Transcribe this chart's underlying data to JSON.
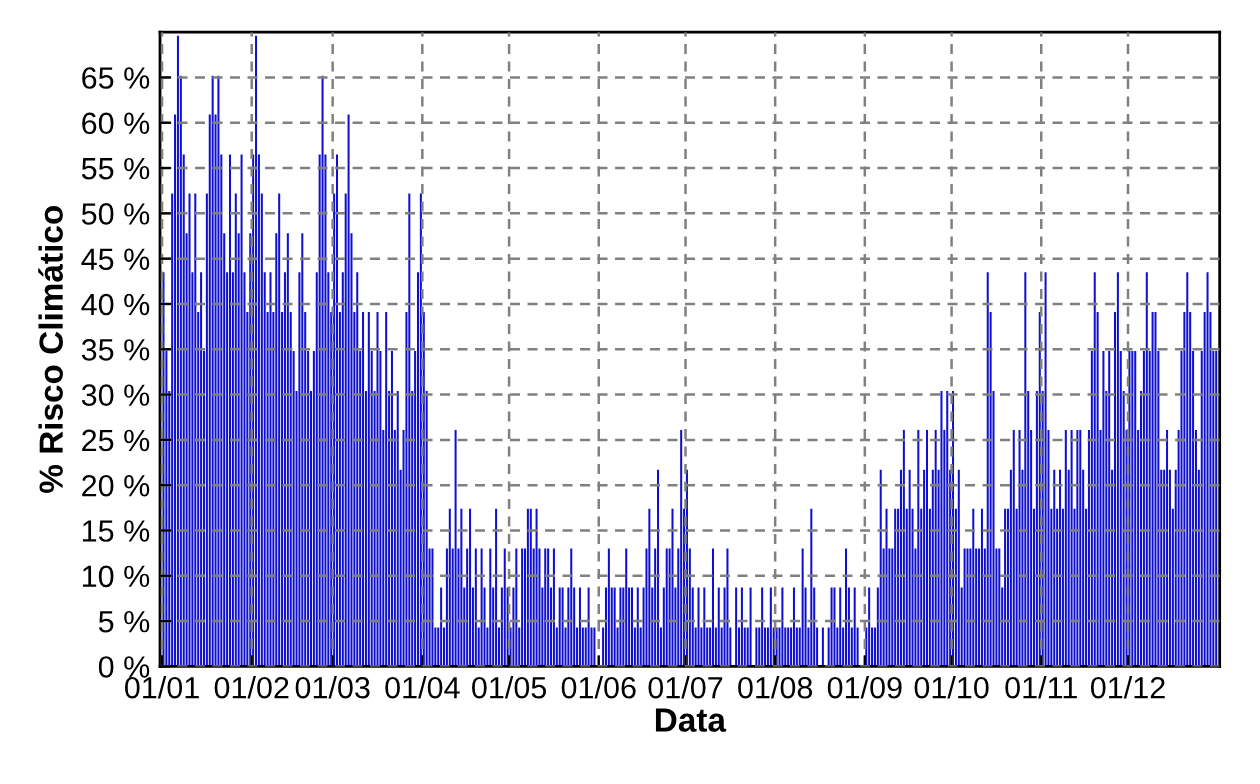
{
  "chart_data": {
    "type": "bar",
    "xlabel": "Data",
    "ylabel": "% Risco Climático",
    "color": "#0f0fd0",
    "grid": true,
    "ylim": [
      0,
      70
    ],
    "yticks": [
      {
        "value": 0,
        "label": "0 %"
      },
      {
        "value": 5,
        "label": "5 %"
      },
      {
        "value": 10,
        "label": "10 %"
      },
      {
        "value": 15,
        "label": "15 %"
      },
      {
        "value": 20,
        "label": "20 %"
      },
      {
        "value": 25,
        "label": "25 %"
      },
      {
        "value": 30,
        "label": "30 %"
      },
      {
        "value": 35,
        "label": "35 %"
      },
      {
        "value": 40,
        "label": "40 %"
      },
      {
        "value": 45,
        "label": "45 %"
      },
      {
        "value": 50,
        "label": "50 %"
      },
      {
        "value": 55,
        "label": "55 %"
      },
      {
        "value": 60,
        "label": "60 %"
      },
      {
        "value": 65,
        "label": "65 %"
      }
    ],
    "categories": [
      "01/01",
      null,
      null,
      null,
      null,
      null,
      null,
      null,
      null,
      null,
      null,
      null,
      null,
      null,
      null,
      null,
      null,
      null,
      null,
      null,
      null,
      null,
      null,
      null,
      null,
      null,
      null,
      null,
      null,
      null,
      null,
      "01/02",
      null,
      null,
      null,
      null,
      null,
      null,
      null,
      null,
      null,
      null,
      null,
      null,
      null,
      null,
      null,
      null,
      null,
      null,
      null,
      null,
      null,
      null,
      null,
      null,
      null,
      null,
      null,
      "01/03",
      null,
      null,
      null,
      null,
      null,
      null,
      null,
      null,
      null,
      null,
      null,
      null,
      null,
      null,
      null,
      null,
      null,
      null,
      null,
      null,
      null,
      null,
      null,
      null,
      null,
      null,
      null,
      null,
      null,
      null,
      "01/04",
      null,
      null,
      null,
      null,
      null,
      null,
      null,
      null,
      null,
      null,
      null,
      null,
      null,
      null,
      null,
      null,
      null,
      null,
      null,
      null,
      null,
      null,
      null,
      null,
      null,
      null,
      null,
      null,
      null,
      "01/05",
      null,
      null,
      null,
      null,
      null,
      null,
      null,
      null,
      null,
      null,
      null,
      null,
      null,
      null,
      null,
      null,
      null,
      null,
      null,
      null,
      null,
      null,
      null,
      null,
      null,
      null,
      null,
      null,
      null,
      null,
      "01/06",
      null,
      null,
      null,
      null,
      null,
      null,
      null,
      null,
      null,
      null,
      null,
      null,
      null,
      null,
      null,
      null,
      null,
      null,
      null,
      null,
      null,
      null,
      null,
      null,
      null,
      null,
      null,
      null,
      null,
      "01/07",
      null,
      null,
      null,
      null,
      null,
      null,
      null,
      null,
      null,
      null,
      null,
      null,
      null,
      null,
      null,
      null,
      null,
      null,
      null,
      null,
      null,
      null,
      null,
      null,
      null,
      null,
      null,
      null,
      null,
      null,
      "01/08",
      null,
      null,
      null,
      null,
      null,
      null,
      null,
      null,
      null,
      null,
      null,
      null,
      null,
      null,
      null,
      null,
      null,
      null,
      null,
      null,
      null,
      null,
      null,
      null,
      null,
      null,
      null,
      null,
      null,
      null,
      "01/09",
      null,
      null,
      null,
      null,
      null,
      null,
      null,
      null,
      null,
      null,
      null,
      null,
      null,
      null,
      null,
      null,
      null,
      null,
      null,
      null,
      null,
      null,
      null,
      null,
      null,
      null,
      null,
      null,
      null,
      "01/10",
      null,
      null,
      null,
      null,
      null,
      null,
      null,
      null,
      null,
      null,
      null,
      null,
      null,
      null,
      null,
      null,
      null,
      null,
      null,
      null,
      null,
      null,
      null,
      null,
      null,
      null,
      null,
      null,
      null,
      null,
      "01/11",
      null,
      null,
      null,
      null,
      null,
      null,
      null,
      null,
      null,
      null,
      null,
      null,
      null,
      null,
      null,
      null,
      null,
      null,
      null,
      null,
      null,
      null,
      null,
      null,
      null,
      null,
      null,
      null,
      null,
      "01/12",
      null,
      null,
      null,
      null,
      null,
      null,
      null,
      null,
      null,
      null,
      null,
      null,
      null,
      null,
      null,
      null,
      null,
      null,
      null,
      null,
      null,
      null,
      null,
      null,
      null,
      null,
      null,
      null,
      null,
      null
    ],
    "values": [
      43.5,
      34.8,
      30.4,
      52.2,
      60.9,
      69.6,
      65.2,
      56.5,
      47.8,
      52.2,
      43.5,
      52.2,
      39.1,
      43.5,
      34.8,
      52.2,
      60.9,
      65.2,
      60.9,
      65.2,
      56.5,
      47.8,
      43.5,
      56.5,
      43.5,
      52.2,
      47.8,
      56.5,
      43.5,
      39.1,
      47.8,
      56.5,
      69.6,
      56.5,
      52.2,
      43.5,
      39.1,
      43.5,
      39.1,
      47.8,
      52.2,
      39.1,
      43.5,
      47.8,
      39.1,
      34.8,
      30.4,
      43.5,
      47.8,
      39.1,
      34.8,
      30.4,
      34.8,
      43.5,
      56.5,
      65.2,
      56.5,
      43.5,
      39.1,
      52.2,
      56.5,
      39.1,
      43.5,
      52.2,
      60.9,
      47.8,
      39.1,
      43.5,
      34.8,
      39.1,
      30.4,
      39.1,
      34.8,
      30.4,
      39.1,
      34.8,
      26.1,
      39.1,
      30.4,
      34.8,
      26.1,
      30.4,
      21.7,
      26.1,
      39.1,
      52.2,
      30.4,
      34.8,
      43.5,
      52.2,
      39.1,
      30.4,
      13,
      13,
      4.3,
      4.3,
      8.7,
      4.3,
      13,
      17.4,
      13,
      26.1,
      13,
      17.4,
      8.7,
      13,
      17.4,
      8.7,
      13,
      4.3,
      13,
      8.7,
      4.3,
      13,
      8.7,
      17.4,
      4.3,
      8.7,
      13,
      8.7,
      4.3,
      8.7,
      13,
      4.3,
      13,
      13,
      17.4,
      17.4,
      13,
      17.4,
      13,
      8.7,
      13,
      13,
      8.7,
      13,
      4.3,
      8.7,
      8.7,
      4.3,
      8.7,
      13,
      8.7,
      4.3,
      8.7,
      4.3,
      4.3,
      8.7,
      4.3,
      4.3,
      0,
      0,
      4.3,
      8.7,
      13,
      8.7,
      8.7,
      4.3,
      8.7,
      8.7,
      13,
      8.7,
      8.7,
      4.3,
      8.7,
      4.3,
      8.7,
      13,
      17.4,
      8.7,
      13,
      21.7,
      4.3,
      8.7,
      13,
      13,
      17.4,
      8.7,
      13,
      26.1,
      17.4,
      21.7,
      13,
      8.7,
      4.3,
      8.7,
      4.3,
      8.7,
      4.3,
      4.3,
      13,
      4.3,
      8.7,
      4.3,
      8.7,
      13,
      4.3,
      0,
      8.7,
      4.3,
      8.7,
      4.3,
      4.3,
      8.7,
      0,
      4.3,
      4.3,
      8.7,
      4.3,
      4.3,
      8.7,
      4.3,
      4.3,
      4.3,
      8.7,
      4.3,
      4.3,
      4.3,
      8.7,
      4.3,
      4.3,
      13,
      8.7,
      4.3,
      17.4,
      8.7,
      4.3,
      0,
      4.3,
      0,
      4.3,
      8.7,
      8.7,
      4.3,
      8.7,
      4.3,
      13,
      8.7,
      4.3,
      8.7,
      4.3,
      0,
      0,
      4.3,
      8.7,
      4.3,
      4.3,
      8.7,
      21.7,
      13,
      17.4,
      13,
      13,
      17.4,
      17.4,
      21.7,
      26.1,
      17.4,
      21.7,
      17.4,
      13,
      26.1,
      17.4,
      21.7,
      26.1,
      17.4,
      21.7,
      26.1,
      21.7,
      30.4,
      26.1,
      30.4,
      21.7,
      30.4,
      17.4,
      21.7,
      8.7,
      13,
      13,
      13,
      17.4,
      13,
      13,
      17.4,
      13,
      43.5,
      39.1,
      30.4,
      13,
      13,
      8.7,
      17.4,
      17.4,
      21.7,
      26.1,
      17.4,
      26.1,
      21.7,
      43.5,
      30.4,
      26.1,
      17.4,
      30.4,
      39.1,
      30.4,
      43.5,
      26.1,
      17.4,
      21.7,
      17.4,
      21.7,
      17.4,
      26.1,
      21.7,
      26.1,
      17.4,
      26.1,
      26.1,
      21.7,
      17.4,
      26.1,
      34.8,
      43.5,
      39.1,
      26.1,
      34.8,
      30.4,
      34.8,
      21.7,
      39.1,
      43.5,
      34.8,
      30.4,
      26.1,
      34.8,
      34.8,
      34.8,
      26.1,
      30.4,
      34.8,
      43.5,
      34.8,
      39.1,
      39.1,
      34.8,
      21.7,
      21.7,
      26.1,
      21.7,
      17.4,
      21.7,
      26.1,
      34.8,
      39.1,
      43.5,
      39.1,
      34.8,
      26.1,
      21.7,
      34.8,
      39.1,
      43.5,
      39.1,
      34.8,
      34.8
    ]
  }
}
